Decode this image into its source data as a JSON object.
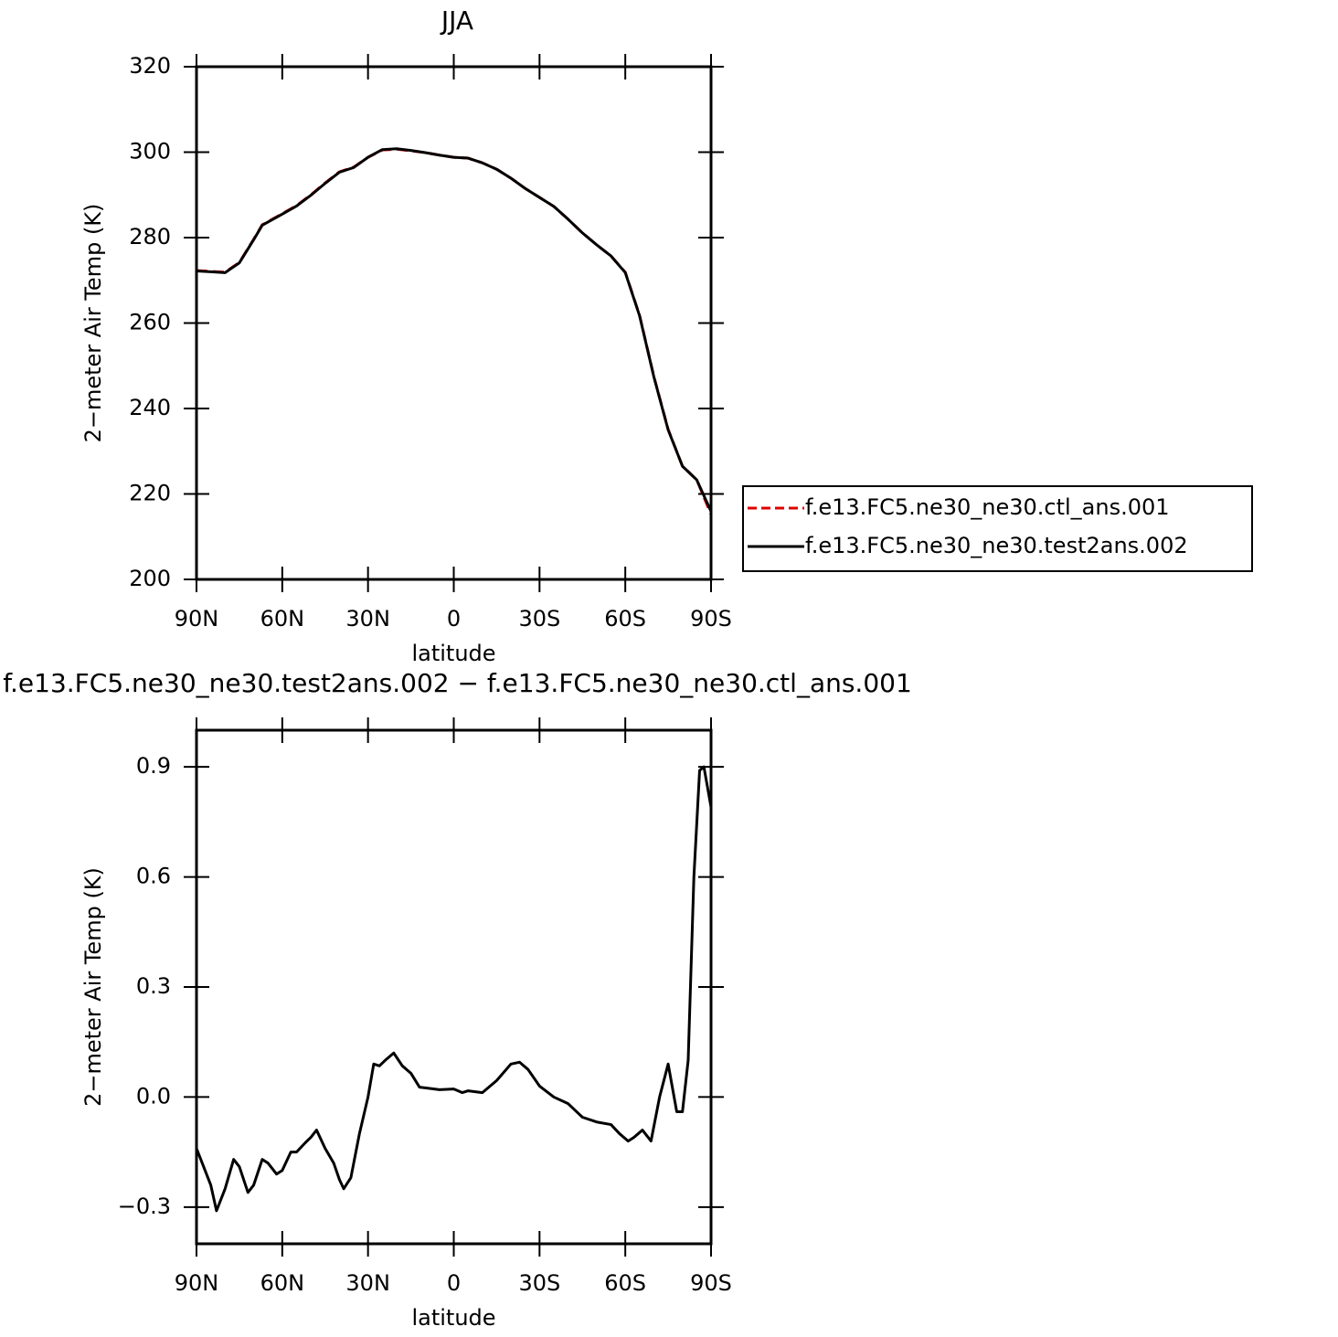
{
  "chart_data": [
    {
      "type": "line",
      "title": "JJA",
      "xlabel": "latitude",
      "ylabel": "2−meter Air Temp (K)",
      "x": [
        90,
        85,
        80,
        75,
        70,
        67,
        60,
        55,
        50,
        45,
        40,
        35,
        30,
        25,
        20,
        15,
        10,
        5,
        0,
        -5,
        -10,
        -15,
        -20,
        -25,
        -30,
        -35,
        -40,
        -45,
        -50,
        -55,
        -60,
        -65,
        -70,
        -75,
        -80,
        -85,
        -90
      ],
      "series": [
        {
          "name": "f.e13.FC5.ne30_ne30.ctl_ans.001",
          "color": "#e00000",
          "linestyle": "dashed",
          "values": [
            272.3,
            272.1,
            271.9,
            274.2,
            279.6,
            283,
            285.6,
            287.5,
            290,
            292.8,
            295.4,
            296.5,
            298.8,
            300.5,
            300.7,
            300.3,
            299.9,
            299.3,
            298.8,
            298.6,
            297.5,
            296,
            293.9,
            291.5,
            289.4,
            287.3,
            284.3,
            281.1,
            278.3,
            275.7,
            271.9,
            261.8,
            247.5,
            235.1,
            226.5,
            223.3,
            215.2
          ]
        },
        {
          "name": "f.e13.FC5.ne30_ne30.test2ans.002",
          "color": "#000000",
          "linestyle": "solid",
          "values": [
            272.2,
            272.0,
            271.8,
            274.1,
            279.5,
            282.9,
            285.5,
            287.4,
            289.9,
            292.7,
            295.3,
            296.4,
            298.8,
            300.6,
            300.8,
            300.4,
            299.9,
            299.3,
            298.8,
            298.6,
            297.5,
            296,
            293.9,
            291.5,
            289.4,
            287.3,
            284.3,
            281.1,
            278.3,
            275.7,
            271.8,
            261.7,
            247.4,
            235.0,
            226.5,
            223.3,
            215.9
          ]
        }
      ],
      "xlim": [
        90,
        -90
      ],
      "xticks": [
        {
          "value": 90,
          "label": "90N"
        },
        {
          "value": 60,
          "label": "60N"
        },
        {
          "value": 30,
          "label": "30N"
        },
        0,
        {
          "value": -30,
          "label": "30S"
        },
        {
          "value": -60,
          "label": "60S"
        },
        {
          "value": -90,
          "label": "90S"
        }
      ],
      "ylim": [
        200,
        320
      ],
      "yticks": [
        200,
        220,
        240,
        260,
        280,
        300,
        320
      ],
      "legend": "outside-right"
    },
    {
      "type": "line",
      "title": "f.e13.FC5.ne30_ne30.test2ans.002 − f.e13.FC5.ne30_ne30.ctl_ans.001",
      "xlabel": "latitude",
      "ylabel": "2−meter Air Temp (K)",
      "x": [
        90,
        87.5,
        85,
        83,
        80,
        77,
        75,
        72,
        70,
        67,
        65,
        62,
        60,
        57,
        55,
        52,
        50,
        48,
        45,
        42,
        40,
        38.5,
        36,
        33,
        30,
        28,
        26,
        24,
        21,
        18,
        15,
        12,
        10,
        5,
        0,
        -3,
        -5,
        -10,
        -15,
        -20,
        -23,
        -26,
        -30,
        -35,
        -40,
        -45,
        -50,
        -55,
        -58,
        -61,
        -63,
        -66,
        -69,
        -72,
        -75,
        -78,
        -80,
        -82,
        -84,
        -86,
        -87.5,
        -90
      ],
      "series": [
        {
          "name": null,
          "color": "#000000",
          "linestyle": "solid",
          "values": [
            -0.14,
            -0.19,
            -0.24,
            -0.31,
            -0.25,
            -0.17,
            -0.19,
            -0.26,
            -0.24,
            -0.17,
            -0.18,
            -0.21,
            -0.2,
            -0.15,
            -0.15,
            -0.125,
            -0.11,
            -0.09,
            -0.14,
            -0.18,
            -0.225,
            -0.25,
            -0.22,
            -0.1,
            0.0,
            0.09,
            0.085,
            0.1,
            0.12,
            0.085,
            0.065,
            0.027,
            0.025,
            0.02,
            0.022,
            0.012,
            0.017,
            0.012,
            0.045,
            0.09,
            0.095,
            0.075,
            0.03,
            0.0,
            -0.018,
            -0.055,
            -0.068,
            -0.075,
            -0.1,
            -0.12,
            -0.11,
            -0.09,
            -0.12,
            0.0,
            0.09,
            -0.04,
            -0.04,
            0.1,
            0.6,
            0.89,
            0.9,
            0.79
          ]
        }
      ],
      "xlim": [
        90,
        -90
      ],
      "xticks": [
        {
          "value": 90,
          "label": "90N"
        },
        {
          "value": 60,
          "label": "60N"
        },
        {
          "value": 30,
          "label": "30N"
        },
        0,
        {
          "value": -30,
          "label": "30S"
        },
        {
          "value": -60,
          "label": "60S"
        },
        {
          "value": -90,
          "label": "90S"
        }
      ],
      "ylim": [
        -0.4,
        1.0
      ],
      "yticks": [
        {
          "value": -0.3,
          "label": "−0.3"
        },
        {
          "value": 0,
          "label": "0.0"
        },
        0.3,
        0.6,
        0.9
      ]
    }
  ]
}
